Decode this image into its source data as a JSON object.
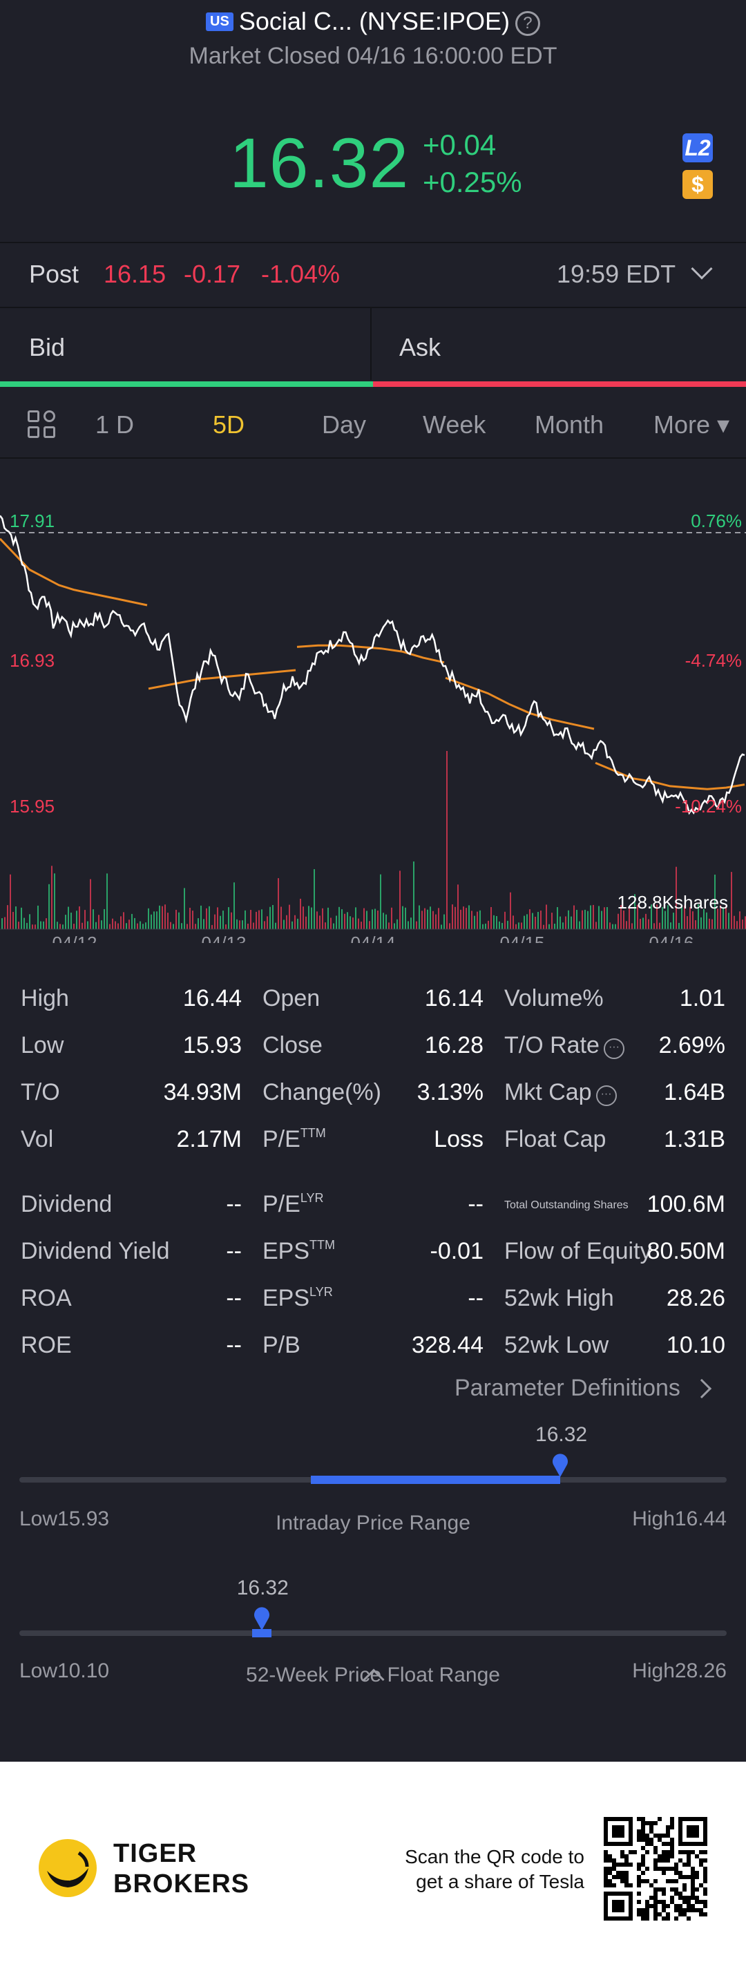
{
  "header": {
    "market_badge": "US",
    "title": "Social C... (NYSE:IPOE)",
    "status": "Market Closed 04/16 16:00:00 EDT"
  },
  "quote": {
    "price": "16.32",
    "change": "+0.04",
    "change_pct": "+0.25%",
    "l2_badge": "L2",
    "currency_badge": "$"
  },
  "post": {
    "label": "Post",
    "price": "16.15",
    "change": "-0.17",
    "change_pct": "-1.04%",
    "time": "19:59 EDT"
  },
  "bidask": {
    "bid": "Bid",
    "ask": "Ask"
  },
  "periods": [
    "1 D",
    "5D",
    "Day",
    "Week",
    "Month",
    "More ▾"
  ],
  "active_period": "5D",
  "chart_data": {
    "type": "line",
    "y_labels": [
      "17.91",
      "16.93",
      "15.95"
    ],
    "pct_labels": [
      "0.76%",
      "-4.74%",
      "-10.24%"
    ],
    "x_labels": [
      "04/12",
      "04/13",
      "04/14",
      "04/15",
      "04/16"
    ],
    "volume_label": "128.8Kshares",
    "ylim": [
      15.85,
      17.95
    ],
    "day_boundaries": [
      0,
      78,
      156,
      234,
      312
    ],
    "price": [
      17.9,
      17.8,
      17.7,
      17.5,
      17.3,
      17.4,
      17.2,
      17.25,
      17.15,
      17.22,
      17.2,
      17.25,
      17.18,
      17.3,
      17.22,
      17.12,
      17.2,
      17.1,
      17.05,
      17.1,
      16.75,
      16.6,
      16.8,
      16.95,
      17.0,
      16.85,
      16.78,
      16.7,
      16.9,
      16.75,
      16.68,
      16.62,
      16.78,
      16.85,
      16.8,
      16.9,
      17.0,
      17.05,
      17.1,
      17.15,
      17.0,
      16.95,
      17.05,
      17.15,
      17.2,
      17.1,
      17.0,
      17.05,
      17.12,
      17.08,
      16.95,
      16.85,
      16.8,
      16.7,
      16.75,
      16.6,
      16.58,
      16.62,
      16.5,
      16.52,
      16.7,
      16.62,
      16.55,
      16.45,
      16.5,
      16.42,
      16.38,
      16.35,
      16.45,
      16.28,
      16.22,
      16.2,
      16.15,
      16.2,
      16.1,
      16.08,
      16.12,
      16.05,
      16.0,
      16.02,
      16.08,
      16.05,
      16.1,
      16.25,
      16.35
    ],
    "avg": [
      17.75,
      17.65,
      17.55,
      17.5,
      17.45,
      17.42,
      17.4,
      17.38,
      17.36,
      17.34,
      17.32,
      16.78,
      16.8,
      16.82,
      16.84,
      16.85,
      16.86,
      16.87,
      16.88,
      16.89,
      16.9,
      17.05,
      17.06,
      17.06,
      17.05,
      17.04,
      17.02,
      16.98,
      16.95,
      16.85,
      16.8,
      16.75,
      16.68,
      16.62,
      16.58,
      16.55,
      16.52,
      16.3,
      16.25,
      16.2,
      16.18,
      16.15,
      16.14,
      16.13,
      16.14,
      16.16
    ]
  },
  "stats": {
    "rows": [
      {
        "l1": "High",
        "v1": "16.44",
        "l2": "Open",
        "v2": "16.14",
        "l3": "Volume%",
        "v3": "1.01"
      },
      {
        "l1": "Low",
        "v1": "15.93",
        "l2": "Close",
        "v2": "16.28",
        "l3": "T/O Rate",
        "v3": "2.69%"
      },
      {
        "l1": "T/O",
        "v1": "34.93M",
        "l2": "Change(%)",
        "v2": "3.13%",
        "l3": "Mkt Cap",
        "v3": "1.64B"
      },
      {
        "l1": "Vol",
        "v1": "2.17M",
        "l2": "P/E",
        "l2sup": "TTM",
        "v2": "Loss",
        "l3": "Float Cap",
        "v3": "1.31B"
      }
    ],
    "rows2": [
      {
        "l1": "Dividend",
        "v1": "--",
        "l2": "P/E",
        "l2sup": "LYR",
        "v2": "--",
        "l3": "Total Outstanding Shares",
        "v3": "100.6M"
      },
      {
        "l1": "Dividend Yield",
        "v1": "--",
        "l2": "EPS",
        "l2sup": "TTM",
        "v2": "-0.01",
        "l3": "Flow of Equity",
        "v3": "80.50M"
      },
      {
        "l1": "ROA",
        "v1": "--",
        "l2": "EPS",
        "l2sup": "LYR",
        "v2": "--",
        "l3": "52wk High",
        "v3": "28.26"
      },
      {
        "l1": "ROE",
        "v1": "--",
        "l2": "P/B",
        "v2": "328.44",
        "l3": "52wk Low",
        "v3": "10.10"
      }
    ],
    "param_def": "Parameter Definitions"
  },
  "intraday_range": {
    "value": "16.32",
    "low_label": "Low15.93",
    "high_label": "High16.44",
    "title": "Intraday Price Range",
    "low": 15.93,
    "high": 16.44,
    "current": 16.32,
    "open": 16.14
  },
  "week52_range": {
    "value": "16.32",
    "low_label": "Low10.10",
    "high_label": "High28.26",
    "title": "52-Week Price Float Range",
    "low": 10.1,
    "high": 28.26,
    "current": 16.32
  },
  "footer": {
    "brand_line1": "TIGER",
    "brand_line2": "BROKERS",
    "scan_line1": "Scan the QR code to",
    "scan_line2": "get a share of Tesla"
  }
}
